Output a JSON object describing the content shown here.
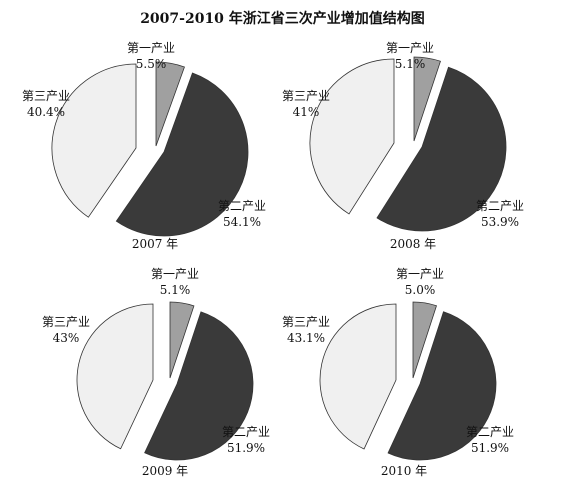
{
  "title": "2007-2010 年浙江省三次产业增加值结构图",
  "colors": {
    "primary": "#a0a0a0",
    "secondary": "#3a3a3a",
    "tertiary": "#f0f0f0",
    "edge": "#333333"
  },
  "chart_data": [
    {
      "type": "pie",
      "caption": "2007 年",
      "slices": [
        {
          "label": "第一产业",
          "value": 5.5,
          "display": "5.5%"
        },
        {
          "label": "第二产业",
          "value": 54.1,
          "display": "54.1%"
        },
        {
          "label": "第三产业",
          "value": 40.4,
          "display": "40.4%"
        }
      ]
    },
    {
      "type": "pie",
      "caption": "2008 年",
      "slices": [
        {
          "label": "第一产业",
          "value": 5.1,
          "display": "5.1%"
        },
        {
          "label": "第二产业",
          "value": 53.9,
          "display": "53.9%"
        },
        {
          "label": "第三产业",
          "value": 41,
          "display": "41%"
        }
      ]
    },
    {
      "type": "pie",
      "caption": "2009 年",
      "slices": [
        {
          "label": "第一产业",
          "value": 5.1,
          "display": "5.1%"
        },
        {
          "label": "第二产业",
          "value": 51.9,
          "display": "51.9%"
        },
        {
          "label": "第三产业",
          "value": 43,
          "display": "43%"
        }
      ]
    },
    {
      "type": "pie",
      "caption": "2010 年",
      "slices": [
        {
          "label": "第一产业",
          "value": 5.0,
          "display": "5.0%"
        },
        {
          "label": "第二产业",
          "value": 51.9,
          "display": "51.9%"
        },
        {
          "label": "第三产业",
          "value": 43.1,
          "display": "43.1%"
        }
      ]
    }
  ]
}
